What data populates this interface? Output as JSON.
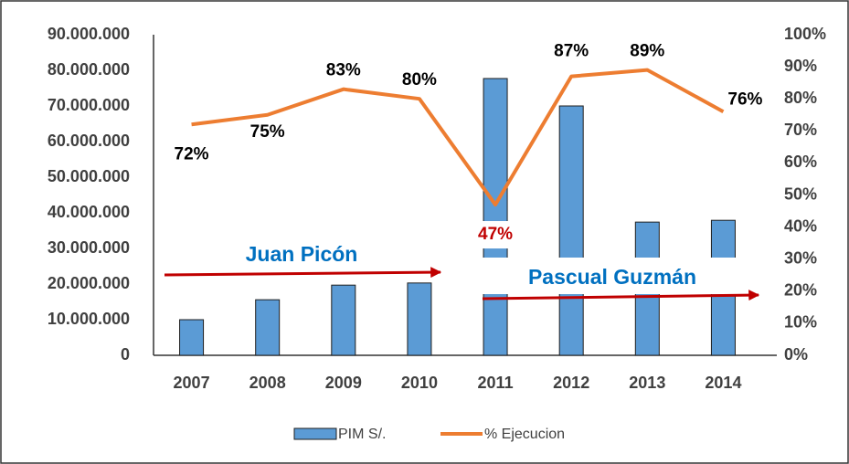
{
  "chart_data": {
    "type": "bar",
    "categories": [
      "2007",
      "2008",
      "2009",
      "2010",
      "2011",
      "2012",
      "2013",
      "2014"
    ],
    "series": [
      {
        "name": "PIM S/.",
        "type": "bar",
        "color": "#5b9bd5",
        "values": [
          10000000,
          15600000,
          19700000,
          20300000,
          77700000,
          70000000,
          37400000,
          37900000
        ]
      },
      {
        "name": "% Ejecucion",
        "type": "line",
        "axis": "y2",
        "color": "#ed7d31",
        "values": [
          72,
          75,
          83,
          80,
          47,
          87,
          89,
          76
        ],
        "value_labels": [
          "72%",
          "75%",
          "83%",
          "80%",
          "47%",
          "87%",
          "89%",
          "76%"
        ]
      }
    ],
    "ylim": [
      0,
      90000000
    ],
    "yticks": [
      0,
      {
        "value": 10000000,
        "label": "10.000.000"
      },
      {
        "value": 20000000,
        "label": "20.000.000"
      },
      {
        "value": 30000000,
        "label": "30.000.000"
      },
      {
        "value": 40000000,
        "label": "40.000.000"
      },
      {
        "value": 50000000,
        "label": "50.000.000"
      },
      {
        "value": 60000000,
        "label": "60.000.000"
      },
      {
        "value": 70000000,
        "label": "70.000.000"
      },
      {
        "value": 80000000,
        "label": "80.000.000"
      },
      {
        "value": 90000000,
        "label": "90.000.000"
      }
    ],
    "y2lim": [
      0,
      100
    ],
    "y2ticks": [
      {
        "value": 0,
        "label": "0%"
      },
      {
        "value": 10,
        "label": "10%"
      },
      {
        "value": 20,
        "label": "20%"
      },
      {
        "value": 30,
        "label": "30%"
      },
      {
        "value": 40,
        "label": "40%"
      },
      {
        "value": 50,
        "label": "50%"
      },
      {
        "value": 60,
        "label": "60%"
      },
      {
        "value": 70,
        "label": "70%"
      },
      {
        "value": 80,
        "label": "80%"
      },
      {
        "value": 90,
        "label": "90%"
      },
      {
        "value": 100,
        "label": "100%"
      }
    ],
    "annotations": [
      "Juan Picón",
      "Pascual Guzmán"
    ],
    "grid": false,
    "legend": "bottom"
  }
}
